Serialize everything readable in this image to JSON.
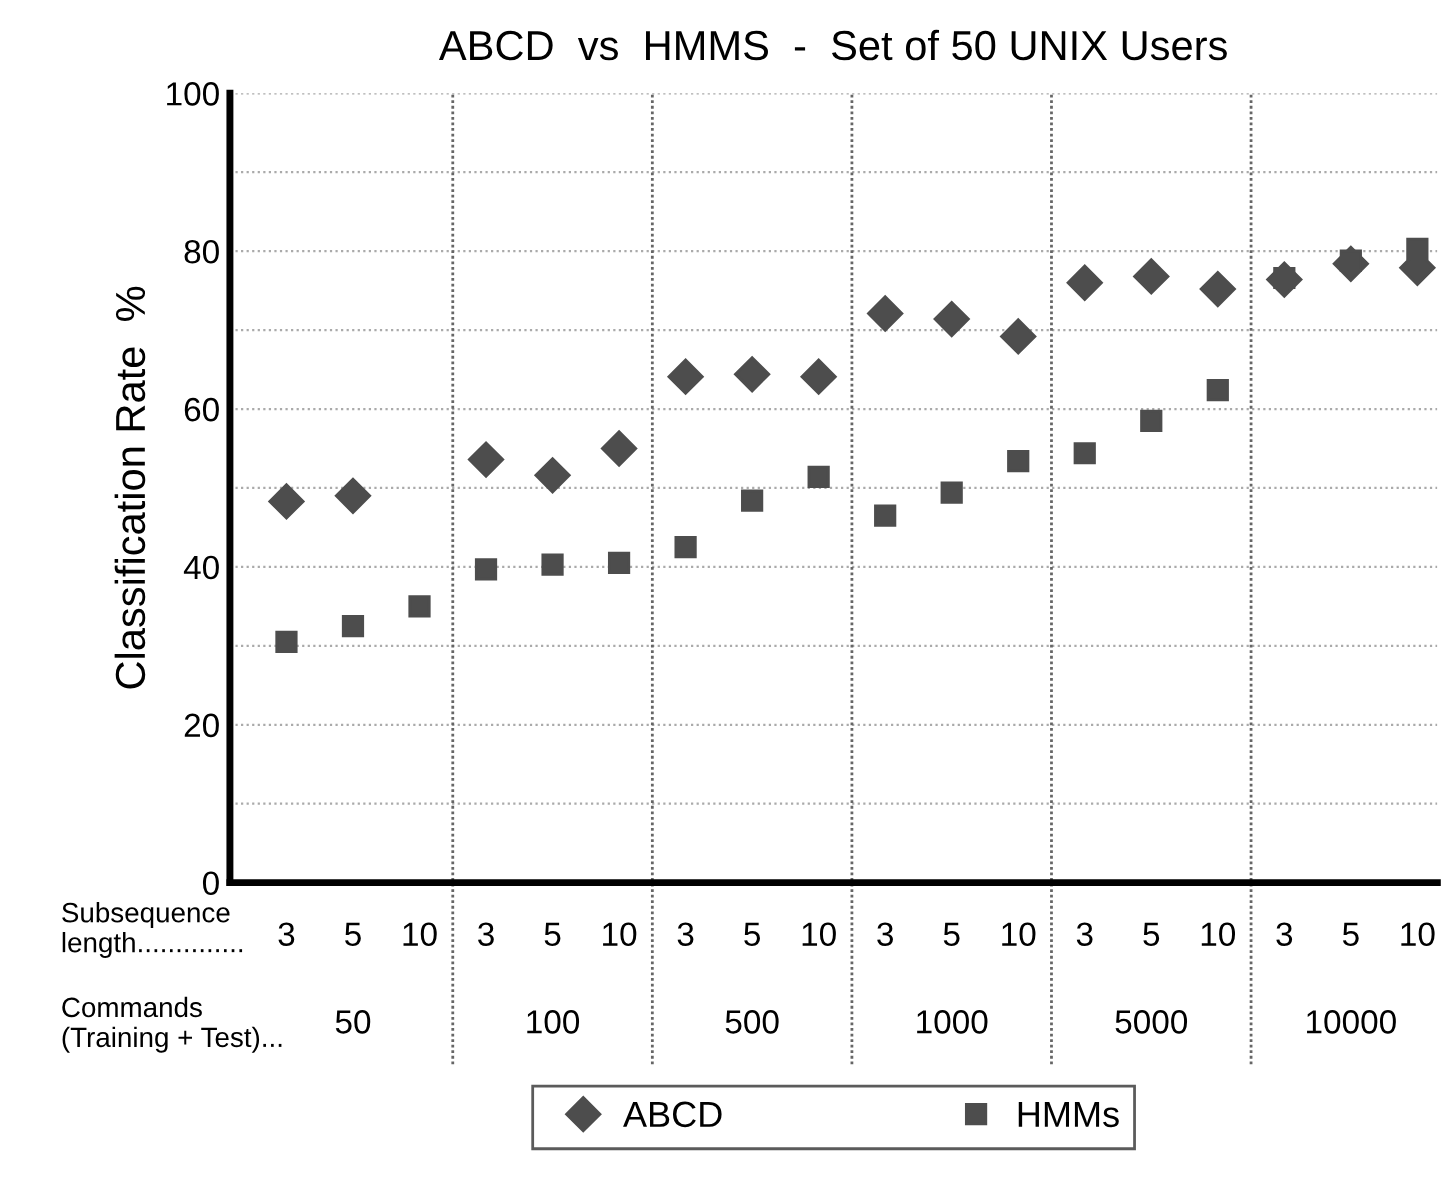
{
  "chart_data": {
    "type": "scatter",
    "title": "ABCD  vs  HMMS  -  Set of 50 UNIX Users",
    "ylabel": "Classification Rate  %",
    "categories": [
      "3",
      "5",
      "10",
      "3",
      "5",
      "10",
      "3",
      "5",
      "10",
      "3",
      "5",
      "10",
      "3",
      "5",
      "10",
      "3",
      "5",
      "10"
    ],
    "series": [
      {
        "name": "ABCD",
        "color": "#4d4d4d",
        "marker": "diamond",
        "values": [
          48.3,
          49.0,
          null,
          53.6,
          51.6,
          55.0,
          64.1,
          64.4,
          64.1,
          72.1,
          71.4,
          69.2,
          76.0,
          76.8,
          75.2,
          76.4,
          78.4,
          77.9
        ]
      },
      {
        "name": "HMMs",
        "color": "#4d4d4d",
        "marker": "square",
        "values": [
          30.5,
          32.5,
          35.0,
          39.7,
          40.3,
          40.5,
          42.5,
          48.4,
          51.4,
          46.5,
          49.4,
          53.4,
          54.4,
          58.5,
          62.4,
          76.6,
          78.8,
          80.3
        ]
      }
    ],
    "ylim": [
      0,
      100
    ],
    "yticks": [
      0,
      {
        "value": 10,
        "label": null
      },
      20,
      {
        "value": 30,
        "label": null
      },
      40,
      {
        "value": 50,
        "label": null
      },
      60,
      {
        "value": 70,
        "label": null
      },
      80,
      {
        "value": 90,
        "label": null
      },
      100
    ],
    "grid": "y",
    "legend": "bottom",
    "annotations": [
      "Subsequence\nlength..............",
      "Commands\n(Training + Test)...",
      "50",
      "100",
      "500",
      "1000",
      "5000",
      "10000"
    ]
  }
}
